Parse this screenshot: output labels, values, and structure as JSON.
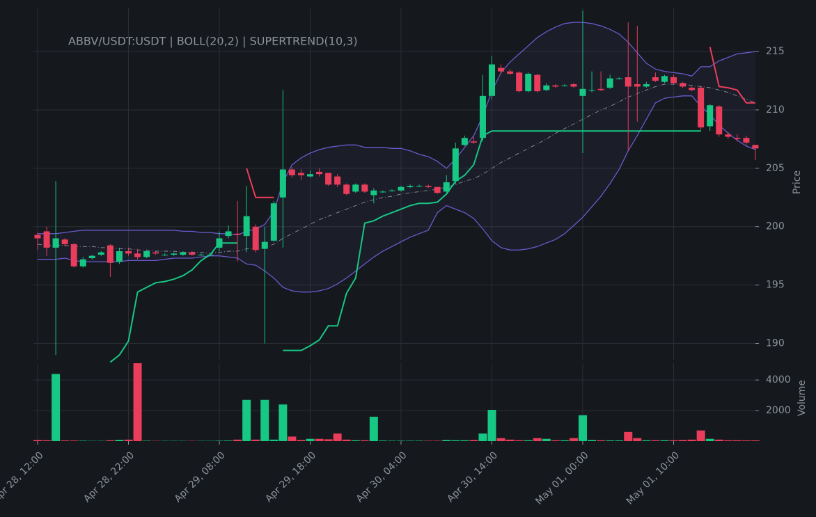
{
  "chart_data": {
    "type": "candlestick",
    "title": "ABBV/USDT:USDT | BOLL(20,2) | SUPERTREND(10,3)",
    "x": [
      "Apr 28, 12:00",
      null,
      null,
      null,
      null,
      null,
      null,
      null,
      null,
      null,
      "Apr 28, 22:00",
      null,
      null,
      null,
      null,
      null,
      null,
      null,
      null,
      null,
      "Apr 29, 08:00",
      null,
      null,
      null,
      null,
      null,
      null,
      null,
      null,
      null,
      "Apr 29, 18:00",
      null,
      null,
      null,
      null,
      null,
      null,
      null,
      null,
      null,
      "Apr 30, 04:00",
      null,
      null,
      null,
      null,
      null,
      null,
      null,
      null,
      null,
      "Apr 30, 14:00",
      null,
      null,
      null,
      null,
      null,
      null,
      null,
      null,
      null,
      "May 01, 00:00",
      null,
      null,
      null,
      null,
      null,
      null,
      null,
      null,
      null,
      "May 01, 10:00",
      null,
      null,
      null,
      null,
      null,
      null,
      null,
      null,
      null
    ],
    "open": [
      199.3,
      199.6,
      198.2,
      198.9,
      198.5,
      196.6,
      197.3,
      197.6,
      198.4,
      197.0,
      197.9,
      197.7,
      197.4,
      197.8,
      197.6,
      197.6,
      197.6,
      197.8,
      197.6,
      197.6,
      198.2,
      199.2,
      199.4,
      199.2,
      200.0,
      198.1,
      198.8,
      202.5,
      204.9,
      204.6,
      204.3,
      204.7,
      204.6,
      204.3,
      203.6,
      203.0,
      203.6,
      202.7,
      203.0,
      203.1,
      203.1,
      203.4,
      203.5,
      203.5,
      203.4,
      203.0,
      203.9,
      207.0,
      207.3,
      207.6,
      211.2,
      213.6,
      213.3,
      213.2,
      211.6,
      213.0,
      211.7,
      212.1,
      212.1,
      212.2,
      211.2,
      211.7,
      211.8,
      211.9,
      212.7,
      212.8,
      212.2,
      212.0,
      212.8,
      212.4,
      212.8,
      212.3,
      211.9,
      211.9,
      208.6,
      210.3,
      207.9,
      207.6,
      207.6,
      207.0
    ],
    "high": [
      199.5,
      200.0,
      203.9,
      199.0,
      198.6,
      197.4,
      197.6,
      197.9,
      198.5,
      198.2,
      198.2,
      198.1,
      198.0,
      197.9,
      197.7,
      197.8,
      197.9,
      197.9,
      197.7,
      197.7,
      199.6,
      200.1,
      202.2,
      203.5,
      200.2,
      200.0,
      202.2,
      211.7,
      205.1,
      204.9,
      204.8,
      205.0,
      204.6,
      204.5,
      203.7,
      203.7,
      203.7,
      203.3,
      203.1,
      203.2,
      203.5,
      203.6,
      203.6,
      203.6,
      203.4,
      204.4,
      207.2,
      207.8,
      207.7,
      213.0,
      214.6,
      213.9,
      213.5,
      213.3,
      213.2,
      213.1,
      212.3,
      212.2,
      212.2,
      212.3,
      218.5,
      213.3,
      213.3,
      213.0,
      212.8,
      217.5,
      217.2,
      212.4,
      213.2,
      213.0,
      213.0,
      212.4,
      212.0,
      212.0,
      210.5,
      210.4,
      208.1,
      207.9,
      207.8,
      207.0
    ],
    "low": [
      198.0,
      197.5,
      189.0,
      198.3,
      196.5,
      196.5,
      197.2,
      197.5,
      195.7,
      196.8,
      197.5,
      197.2,
      197.3,
      197.6,
      197.5,
      197.5,
      197.5,
      197.5,
      197.5,
      197.5,
      197.9,
      199.0,
      197.0,
      197.8,
      197.8,
      190.0,
      198.7,
      198.2,
      204.2,
      204.0,
      204.2,
      204.3,
      203.5,
      203.4,
      202.7,
      202.9,
      202.9,
      202.0,
      202.9,
      203.0,
      203.0,
      203.3,
      203.4,
      203.3,
      202.8,
      202.9,
      203.6,
      206.9,
      207.1,
      207.3,
      210.9,
      213.1,
      213.0,
      211.5,
      211.5,
      211.5,
      211.6,
      211.9,
      212.0,
      211.9,
      206.3,
      211.5,
      211.6,
      211.8,
      212.6,
      206.5,
      209.0,
      211.9,
      212.4,
      212.3,
      212.2,
      211.9,
      211.6,
      208.3,
      208.2,
      207.7,
      207.5,
      207.3,
      207.0,
      205.7
    ],
    "close": [
      199.0,
      198.2,
      199.0,
      198.5,
      196.6,
      197.2,
      197.5,
      197.8,
      196.9,
      197.9,
      197.7,
      197.4,
      197.9,
      197.7,
      197.6,
      197.7,
      197.8,
      197.6,
      197.6,
      197.6,
      199.0,
      199.6,
      199.3,
      200.9,
      198.0,
      198.7,
      202.0,
      204.9,
      204.4,
      204.4,
      204.5,
      204.5,
      203.6,
      203.6,
      202.8,
      203.6,
      203.0,
      203.1,
      203.0,
      203.1,
      203.4,
      203.5,
      203.5,
      203.4,
      202.9,
      203.8,
      206.7,
      207.6,
      207.2,
      211.2,
      213.9,
      213.3,
      213.1,
      211.6,
      213.1,
      211.6,
      212.1,
      212.0,
      212.1,
      212.0,
      211.8,
      211.7,
      211.7,
      212.7,
      212.7,
      212.0,
      212.0,
      212.2,
      212.5,
      212.9,
      212.3,
      212.0,
      211.7,
      208.5,
      210.4,
      207.9,
      207.7,
      207.5,
      207.2,
      206.7
    ],
    "up_color": "#17c784",
    "down_color": "#ea3d5b",
    "ylabel": "Price",
    "ylim": [
      188.6,
      218.7
    ],
    "yticks": [
      190,
      195,
      200,
      205,
      210,
      215
    ],
    "grid": true,
    "bollinger": {
      "color": "#6a5acd",
      "upper": [
        199.4,
        199.4,
        199.4,
        199.5,
        199.6,
        199.7,
        199.7,
        199.7,
        199.7,
        199.7,
        199.7,
        199.7,
        199.7,
        199.7,
        199.7,
        199.7,
        199.6,
        199.6,
        199.5,
        199.5,
        199.4,
        199.4,
        199.3,
        199.6,
        199.8,
        200.2,
        201.3,
        203.8,
        205.3,
        205.9,
        206.3,
        206.6,
        206.8,
        206.9,
        207.0,
        207.0,
        206.8,
        206.8,
        206.8,
        206.7,
        206.7,
        206.5,
        206.2,
        206.0,
        205.6,
        205.0,
        205.8,
        206.8,
        207.8,
        209.5,
        211.6,
        213.2,
        214.1,
        214.8,
        215.5,
        216.2,
        216.7,
        217.1,
        217.4,
        217.5,
        217.5,
        217.4,
        217.2,
        216.9,
        216.5,
        215.8,
        214.9,
        214.0,
        213.5,
        213.3,
        213.2,
        213.1,
        212.9,
        213.7,
        213.7,
        214.2,
        214.5,
        214.8,
        214.9,
        215.0
      ],
      "middle": [
        198.5,
        198.4,
        198.4,
        198.4,
        198.3,
        198.3,
        198.3,
        198.2,
        198.2,
        198.1,
        198.1,
        198.0,
        198.0,
        197.9,
        197.9,
        197.9,
        197.8,
        197.8,
        197.8,
        197.7,
        197.8,
        197.9,
        197.9,
        198.1,
        198.1,
        198.2,
        198.5,
        199.0,
        199.4,
        199.8,
        200.2,
        200.6,
        200.9,
        201.2,
        201.5,
        201.8,
        202.1,
        202.3,
        202.5,
        202.6,
        202.8,
        202.9,
        203.0,
        203.1,
        203.2,
        203.4,
        203.6,
        203.9,
        204.1,
        204.5,
        205.0,
        205.5,
        205.9,
        206.3,
        206.7,
        207.1,
        207.5,
        208.0,
        208.4,
        208.8,
        209.2,
        209.6,
        210.0,
        210.3,
        210.7,
        211.1,
        211.4,
        211.7,
        212.0,
        212.2,
        212.2,
        212.2,
        212.1,
        212.0,
        211.9,
        211.7,
        211.5,
        211.2,
        210.9,
        210.6
      ],
      "lower": [
        197.2,
        197.2,
        197.2,
        197.3,
        197.1,
        197.0,
        197.0,
        197.0,
        197.0,
        197.0,
        197.1,
        197.1,
        197.1,
        197.1,
        197.2,
        197.3,
        197.3,
        197.3,
        197.4,
        197.5,
        197.5,
        197.4,
        197.3,
        196.8,
        196.7,
        196.2,
        195.6,
        194.8,
        194.5,
        194.4,
        194.4,
        194.5,
        194.7,
        195.1,
        195.6,
        196.2,
        196.8,
        197.4,
        197.9,
        198.3,
        198.7,
        199.1,
        199.4,
        199.7,
        201.2,
        201.8,
        201.5,
        201.2,
        200.7,
        199.8,
        198.8,
        198.2,
        198.0,
        198.0,
        198.1,
        198.3,
        198.6,
        198.9,
        199.4,
        200.1,
        200.8,
        201.7,
        202.6,
        203.7,
        204.9,
        206.5,
        207.8,
        209.2,
        210.6,
        211.0,
        211.1,
        211.2,
        211.2,
        210.3,
        209.6,
        208.7,
        208.0,
        207.4,
        206.9,
        206.6
      ]
    },
    "supertrend": {
      "up": [
        null,
        null,
        null,
        null,
        null,
        null,
        null,
        null,
        188.4,
        189.0,
        190.2,
        194.4,
        194.8,
        195.2,
        195.3,
        195.5,
        195.8,
        196.3,
        197.1,
        197.6,
        198.6,
        198.6,
        198.6,
        null,
        null,
        null,
        null,
        189.4,
        189.4,
        189.4,
        189.8,
        190.3,
        191.5,
        191.5,
        194.3,
        195.6,
        200.3,
        200.5,
        200.9,
        201.2,
        201.5,
        201.8,
        202.0,
        202.0,
        202.1,
        202.8,
        203.9,
        204.4,
        205.3,
        207.8,
        208.2,
        208.2,
        208.2,
        208.2,
        208.2,
        208.2,
        208.2,
        208.2,
        208.2,
        208.2,
        208.2,
        208.2,
        208.2,
        208.2,
        208.2,
        208.2,
        208.2,
        208.2,
        208.2,
        208.2,
        208.2,
        208.2,
        208.2,
        208.2,
        null,
        null,
        null,
        null,
        null,
        null
      ],
      "down": [
        null,
        null,
        null,
        null,
        null,
        null,
        null,
        null,
        null,
        null,
        null,
        null,
        null,
        null,
        null,
        null,
        null,
        null,
        null,
        null,
        null,
        null,
        null,
        205.0,
        202.5,
        202.5,
        202.5,
        null,
        null,
        null,
        null,
        null,
        null,
        null,
        null,
        null,
        null,
        null,
        null,
        null,
        null,
        null,
        null,
        null,
        null,
        null,
        null,
        null,
        null,
        null,
        null,
        null,
        null,
        null,
        null,
        null,
        null,
        null,
        null,
        null,
        null,
        null,
        null,
        null,
        null,
        null,
        null,
        null,
        null,
        null,
        null,
        null,
        null,
        null,
        215.4,
        212.0,
        211.9,
        211.7,
        210.6,
        210.6
      ]
    },
    "volume": {
      "ylabel": "Volume",
      "ylim": [
        0,
        5100
      ],
      "yticks": [
        2000,
        4000
      ],
      "values": [
        80,
        60,
        4400,
        50,
        40,
        30,
        20,
        20,
        60,
        90,
        100,
        5100,
        30,
        20,
        20,
        20,
        20,
        20,
        20,
        20,
        30,
        40,
        100,
        2700,
        100,
        2700,
        100,
        2400,
        300,
        80,
        150,
        150,
        120,
        500,
        100,
        60,
        60,
        1600,
        40,
        30,
        30,
        30,
        30,
        30,
        30,
        80,
        60,
        60,
        80,
        500,
        2050,
        200,
        100,
        60,
        60,
        200,
        150,
        60,
        60,
        200,
        1700,
        80,
        60,
        50,
        50,
        600,
        200,
        60,
        60,
        60,
        60,
        80,
        100,
        700,
        150,
        100,
        60,
        60,
        50,
        50
      ]
    }
  }
}
